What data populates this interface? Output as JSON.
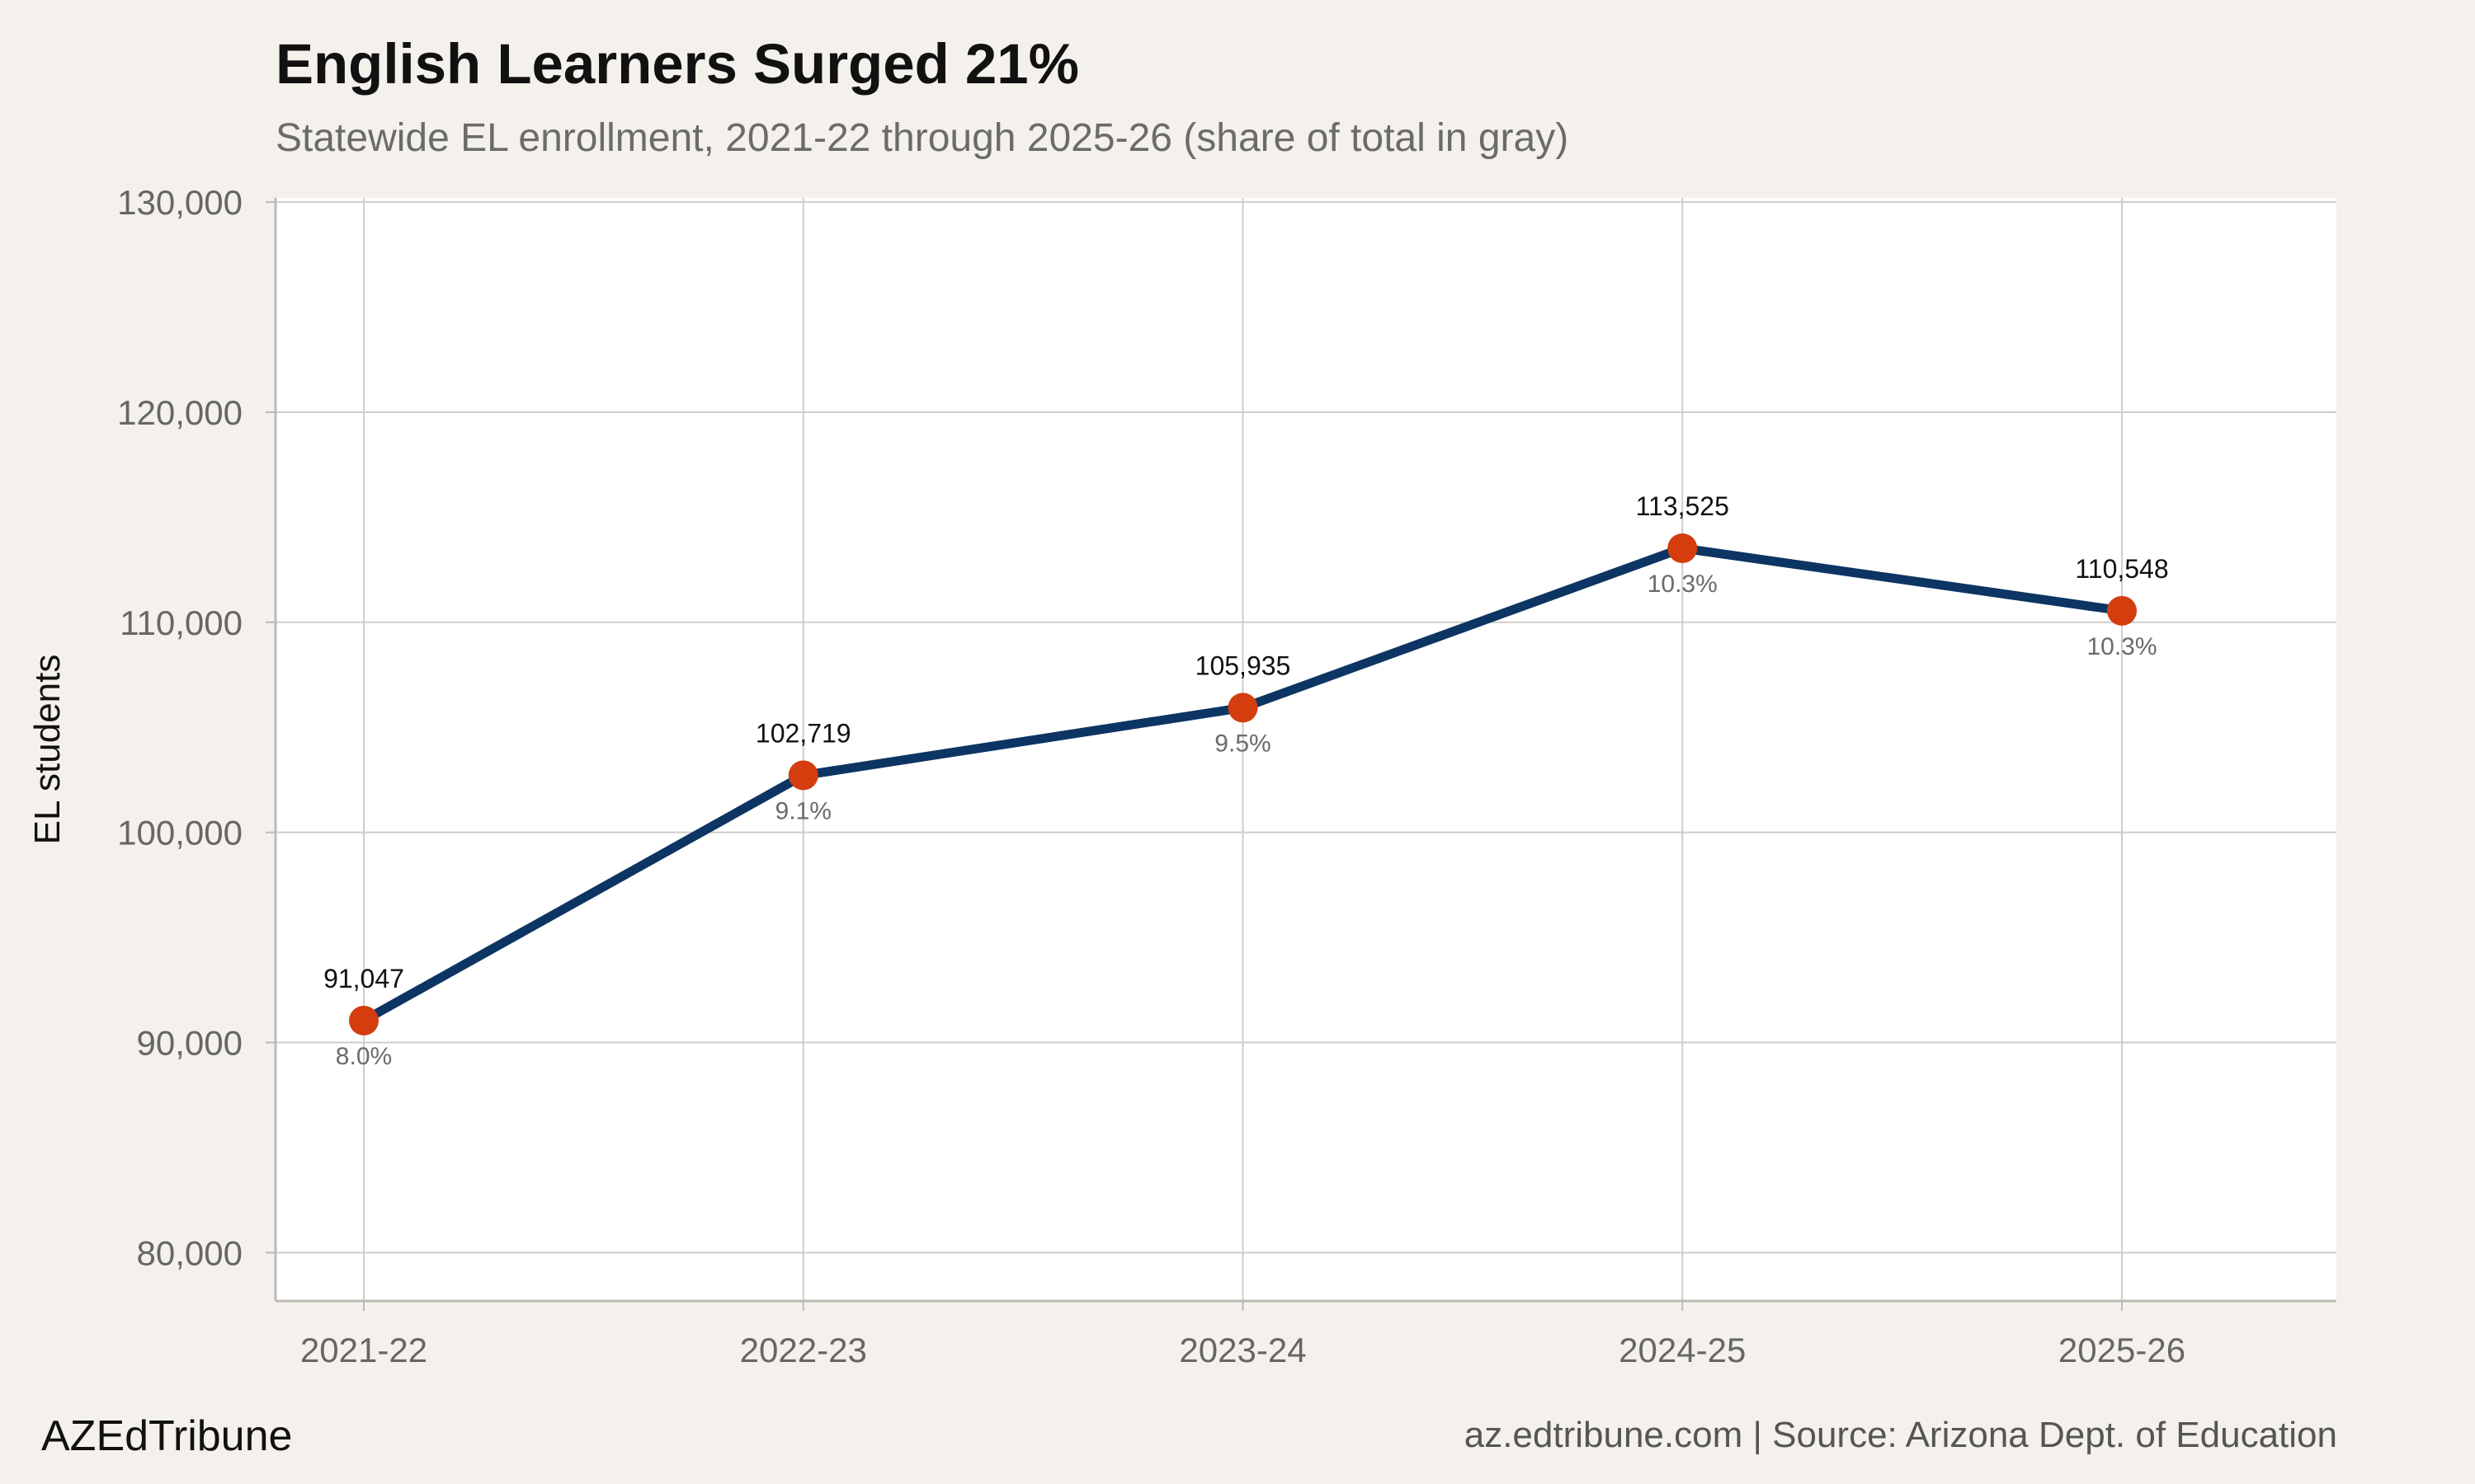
{
  "header": {
    "title": "English Learners Surged 21%",
    "subtitle": "Statewide EL enrollment, 2021-22 through 2025-26 (share of total in gray)"
  },
  "footer": {
    "brand": "AZEdTribune",
    "source": "az.edtribune.com | Source: Arizona Dept. of Education"
  },
  "chart_data": {
    "type": "line",
    "title": "English Learners Surged 21%",
    "subtitle": "Statewide EL enrollment, 2021-22 through 2025-26 (share of total in gray)",
    "xlabel": "",
    "ylabel": "EL students",
    "categories": [
      "2021-22",
      "2022-23",
      "2023-24",
      "2024-25",
      "2025-26"
    ],
    "values": [
      91047,
      102719,
      105935,
      113525,
      110548
    ],
    "value_labels": [
      "91,047",
      "102,719",
      "105,935",
      "113,525",
      "110,548"
    ],
    "share_labels": [
      "8.0%",
      "9.1%",
      "9.5%",
      "10.3%",
      "10.3%"
    ],
    "ylim": [
      77700,
      130200
    ],
    "yticks": [
      80000,
      90000,
      100000,
      110000,
      120000,
      130000
    ],
    "ytick_labels": [
      "80,000",
      "90,000",
      "100,000",
      "110,000",
      "120,000",
      "130,000"
    ],
    "grid": true,
    "legend": "none",
    "colors": {
      "line": "#0d3563",
      "marker": "#d43d0e",
      "grid": "#cfcccb",
      "panel": "#ffffff",
      "background": "#f4f1ec"
    }
  }
}
